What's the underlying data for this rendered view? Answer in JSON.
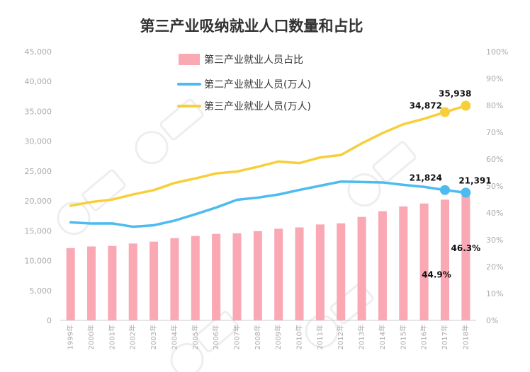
{
  "chart_data": {
    "type": "bar+line",
    "title": "第三产业吸纳就业人口数量和占比",
    "categories": [
      "1999年",
      "2000年",
      "2001年",
      "2002年",
      "2003年",
      "2004年",
      "2005年",
      "2006年",
      "2007年",
      "2008年",
      "2009年",
      "2010年",
      "2011年",
      "2012年",
      "2013年",
      "2014年",
      "2015年",
      "2016年",
      "2017年",
      "2018年"
    ],
    "y_left": {
      "min": 0,
      "max": 45000,
      "ticks": [
        "0",
        "5,000",
        "10,000",
        "15,000",
        "20,000",
        "25,000",
        "30,000",
        "35,000",
        "40,000",
        "45,000"
      ]
    },
    "y_right": {
      "min": 0,
      "max": 100,
      "ticks": [
        "0%",
        "10%",
        "20%",
        "30%",
        "40%",
        "50%",
        "60%",
        "70%",
        "80%",
        "90%",
        "100%"
      ]
    },
    "series": [
      {
        "name": "第三产业就业人员占比",
        "type": "bar",
        "axis": "right",
        "color": "#f9a8b4",
        "values": [
          26.9,
          27.5,
          27.7,
          28.6,
          29.3,
          30.6,
          31.4,
          32.2,
          32.4,
          33.2,
          34.1,
          34.6,
          35.7,
          36.1,
          38.5,
          40.6,
          42.4,
          43.5,
          44.9,
          46.3
        ]
      },
      {
        "name": "第二产业就业人员(万人)",
        "type": "line",
        "axis": "left",
        "color": "#4dbbef",
        "values": [
          16421,
          16219,
          16234,
          15682,
          15927,
          16709,
          17766,
          18894,
          20186,
          20553,
          21080,
          21842,
          22544,
          23241,
          23170,
          23099,
          22693,
          22350,
          21824,
          21391
        ]
      },
      {
        "name": "第三产业就业人员(万人)",
        "type": "line",
        "axis": "left",
        "color": "#f7cf3a",
        "values": [
          19205,
          19823,
          20228,
          21090,
          21809,
          23011,
          23771,
          24614,
          24917,
          25717,
          26603,
          26332,
          27282,
          27690,
          29636,
          31364,
          32839,
          33757,
          34872,
          35938
        ]
      }
    ],
    "data_labels": {
      "secondary_last": [
        "21,824",
        "21,391"
      ],
      "tertiary_last": [
        "34,872",
        "35,938"
      ],
      "share_last": [
        "44.9%",
        "46.3%"
      ]
    },
    "legend_position": "top-center",
    "grid": false
  }
}
